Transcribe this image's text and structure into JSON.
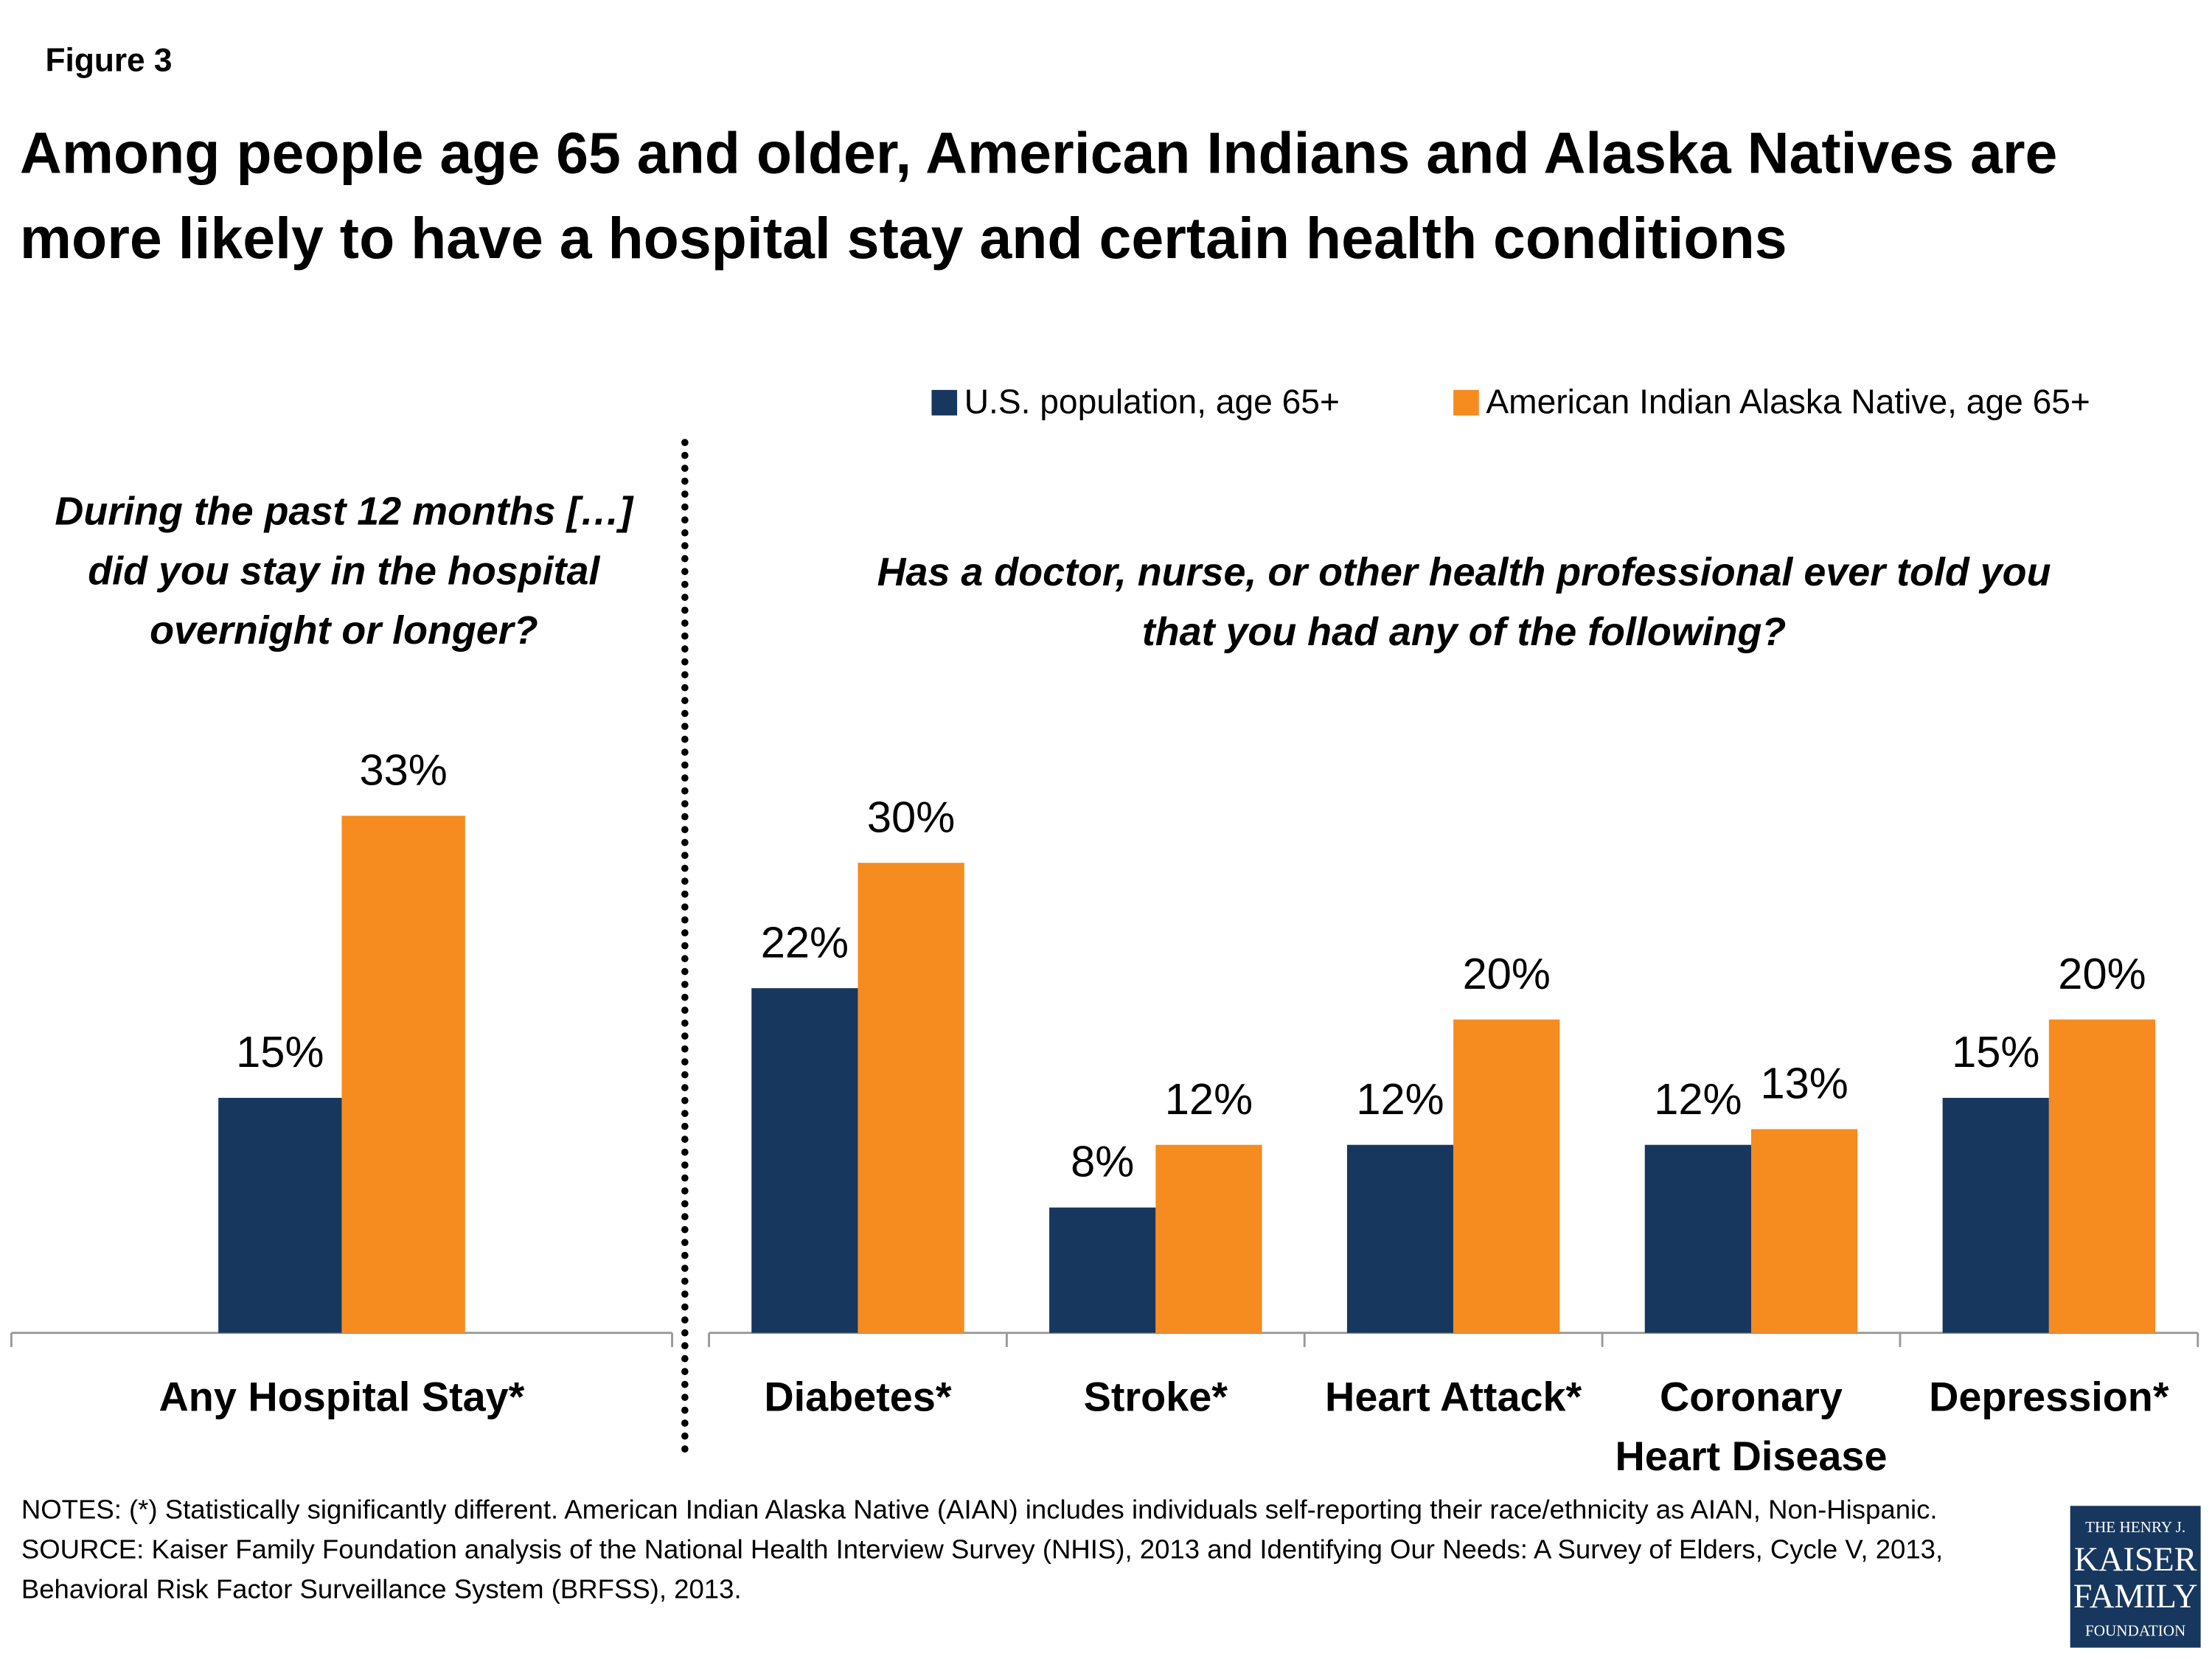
{
  "figure_label": "Figure 3",
  "title": "Among people age 65 and older, American Indians and Alaska Natives are more likely to have a hospital stay and certain health conditions",
  "chart_data": [
    {
      "type": "bar",
      "subtitle": "During the past 12 months […] did you stay in the hospital overnight or longer?",
      "categories": [
        "Any Hospital Stay*"
      ],
      "series": [
        {
          "color": "#17375e",
          "values": [
            15
          ],
          "value_labels": [
            "15%"
          ]
        },
        {
          "color": "#f68b1f",
          "values": [
            33
          ],
          "value_labels": [
            "33%"
          ]
        }
      ]
    },
    {
      "type": "bar",
      "subtitle": "Has a doctor, nurse, or other health professional ever told you that you had any of the following?",
      "categories": [
        "Diabetes*",
        "Stroke*",
        "Heart Attack*",
        "Coronary Heart Disease",
        "Depression*"
      ],
      "series": [
        {
          "name": "U.S. population, age 65+",
          "color": "#17375e",
          "values": [
            22,
            8,
            12,
            12,
            15
          ],
          "value_labels": [
            "22%",
            "8%",
            "12%",
            "12%",
            "15%"
          ]
        },
        {
          "name": "American Indian Alaska Native, age 65+",
          "color": "#f68b1f",
          "values": [
            30,
            12,
            20,
            13,
            20
          ],
          "value_labels": [
            "30%",
            "12%",
            "20%",
            "13%",
            "20%"
          ]
        }
      ]
    }
  ],
  "notes": "NOTES: (*) Statistically significantly different. American Indian Alaska Native (AIAN) includes individuals self-reporting their race/ethnicity as AIAN, Non-Hispanic.",
  "source": "SOURCE: Kaiser Family Foundation analysis of the National Health Interview Survey (NHIS), 2013 and Identifying Our Needs: A Survey of Elders, Cycle V, 2013, Behavioral Risk Factor Surveillance System (BRFSS), 2013.",
  "logo": [
    "THE HENRY J.",
    "KAISER",
    "FAMILY",
    "FOUNDATION"
  ]
}
